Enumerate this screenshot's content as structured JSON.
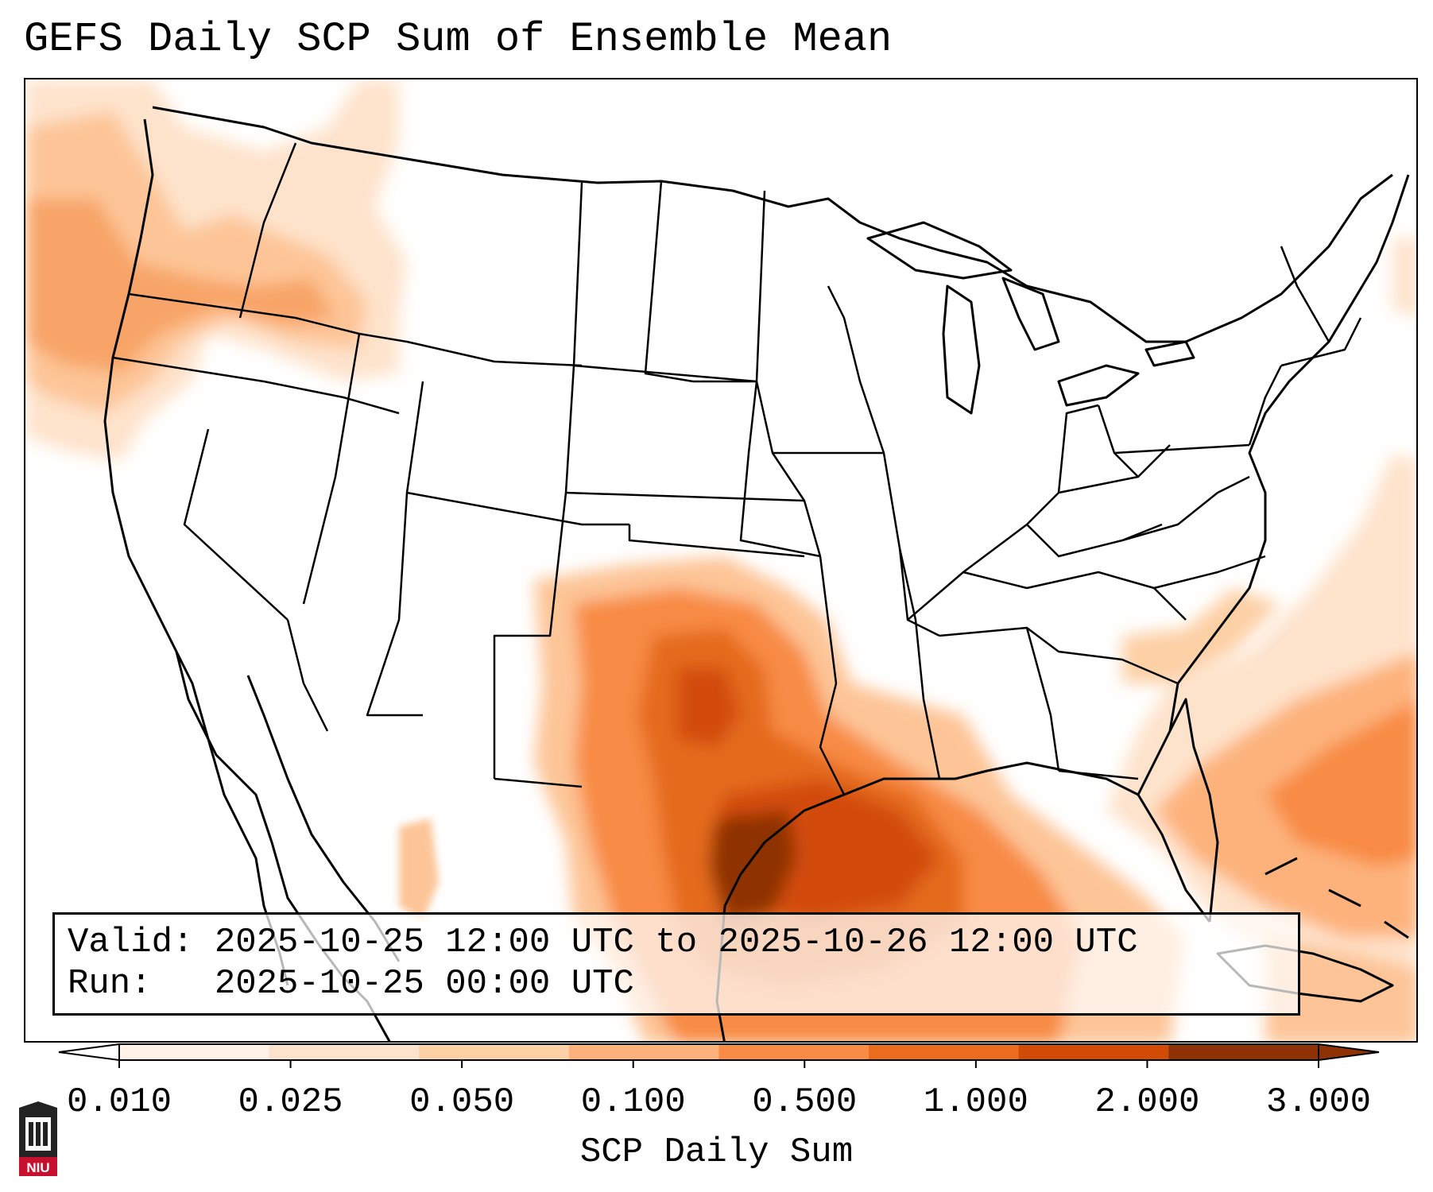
{
  "title": "GEFS Daily SCP Sum of Ensemble Mean",
  "info": {
    "valid_line": "Valid: 2025-10-25 12:00 UTC to 2025-10-26 12:00 UTC",
    "run_line": "Run:   2025-10-25 00:00 UTC"
  },
  "colorbar": {
    "label": "SCP Daily Sum",
    "ticks": [
      "0.010",
      "0.025",
      "0.050",
      "0.100",
      "0.500",
      "1.000",
      "2.000",
      "3.000"
    ],
    "colors": [
      "#fff3e8",
      "#fee3cc",
      "#fdd0a6",
      "#fdb27b",
      "#f88b45",
      "#eb6c1c",
      "#d24c07",
      "#8e3206"
    ],
    "extend_low_color": "#ffffff",
    "extend_high_color": "#8e3206"
  },
  "logo": {
    "text": "NIU"
  }
}
